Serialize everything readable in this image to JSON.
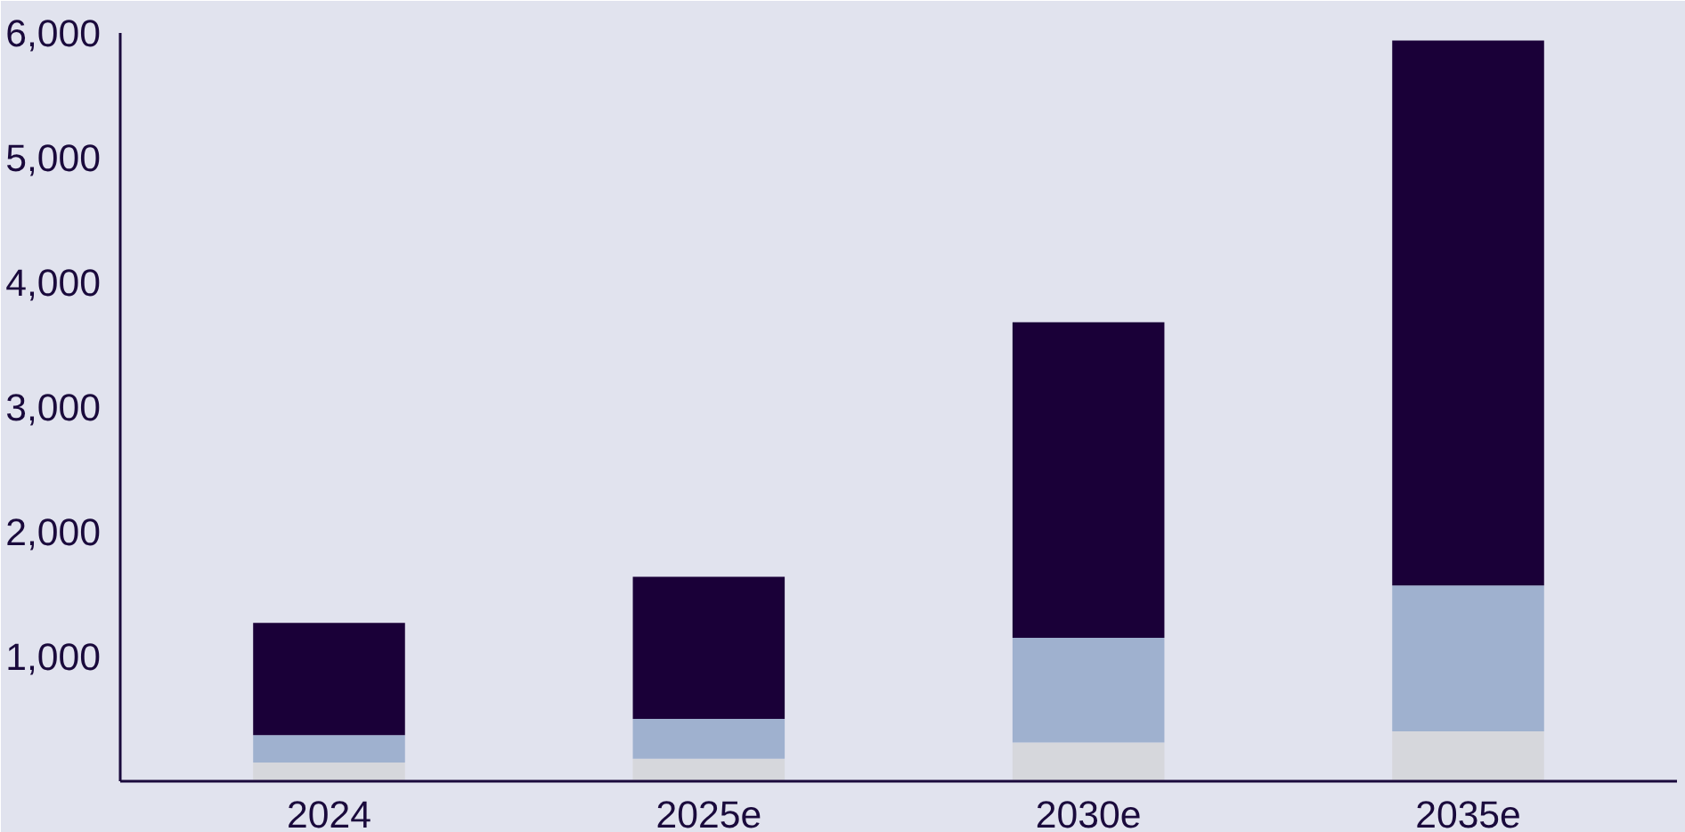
{
  "chart_data": {
    "type": "bar",
    "stacked": true,
    "categories": [
      "2024",
      "2025e",
      "2030e",
      "2035e"
    ],
    "series": [
      {
        "color": "#d6d7dc",
        "values": [
          150,
          180,
          310,
          400
        ]
      },
      {
        "color": "#9fb1cf",
        "values": [
          220,
          320,
          840,
          1170
        ]
      },
      {
        "color": "#1a0038",
        "values": [
          900,
          1140,
          2530,
          4370
        ]
      }
    ],
    "ylim": [
      0,
      6000
    ],
    "yticks": [
      {
        "value": 1000,
        "label": "1,000"
      },
      {
        "value": 2000,
        "label": "2,000"
      },
      {
        "value": 3000,
        "label": "3,000"
      },
      {
        "value": 4000,
        "label": "4,000"
      },
      {
        "value": 5000,
        "label": "5,000"
      },
      {
        "value": 6000,
        "label": "6,000"
      }
    ],
    "grid": false
  }
}
